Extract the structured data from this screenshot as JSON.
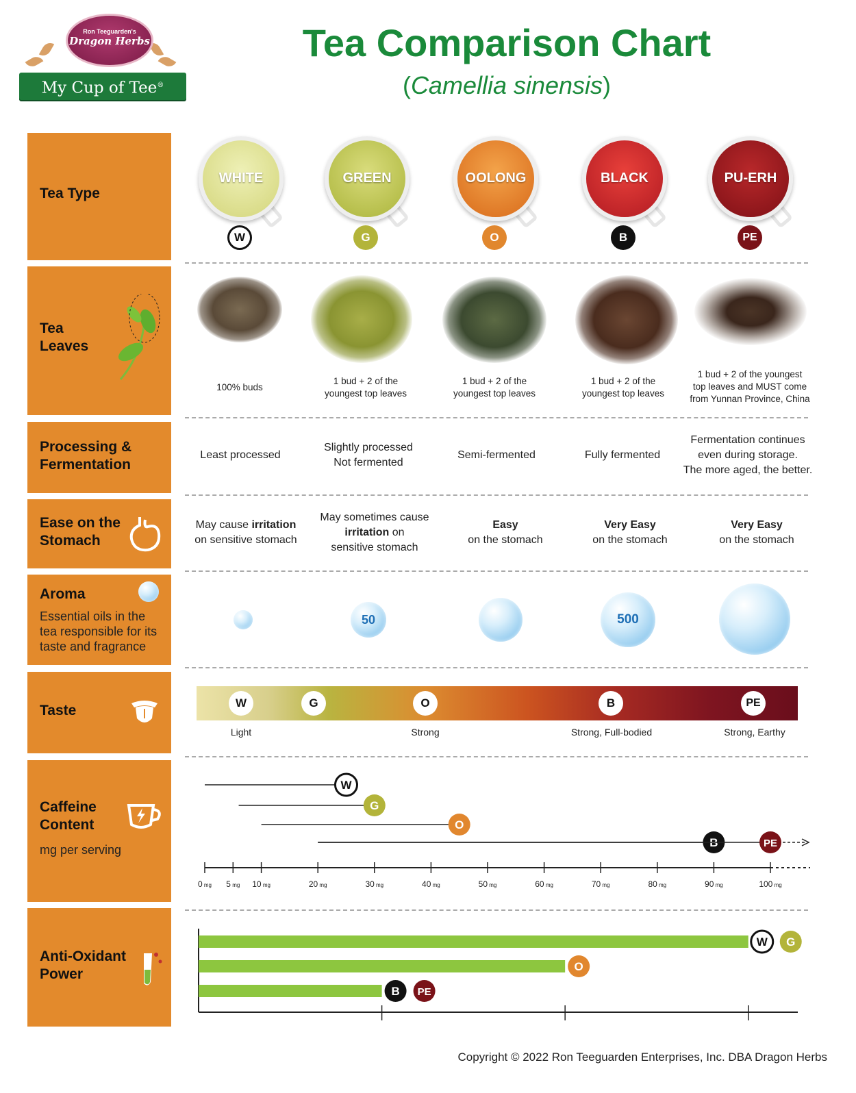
{
  "header": {
    "logo_top": "Ron Teeguarden's",
    "logo_brand": "Dragon Herbs",
    "logo_ribbon": "My Cup of Tee",
    "title": "Tea Comparison Chart",
    "subtitle": "Camellia sinensis"
  },
  "rows": {
    "tea_type": "Tea Type",
    "tea_leaves_1": "Tea",
    "tea_leaves_2": "Leaves",
    "processing_1": "Processing &",
    "processing_2": "Fermentation",
    "stomach_1": "Ease on the",
    "stomach_2": "Stomach",
    "aroma": "Aroma",
    "aroma_desc_1": "Essential oils in the",
    "aroma_desc_2": "tea responsible for its",
    "aroma_desc_3": "taste and fragrance",
    "taste": "Taste",
    "caffeine_1": "Caffeine",
    "caffeine_2": "Content",
    "caffeine_unit": "mg per serving",
    "antioxidant_1": "Anti-Oxidant",
    "antioxidant_2": "Power"
  },
  "teas": [
    {
      "name": "WHITE",
      "code": "W",
      "color": "#ffffff",
      "cup": "#d6dc8a",
      "leaves": "100% buds",
      "processing": "Least processed",
      "stomach_a": "May cause ",
      "stomach_b": "irritation",
      "stomach_c": "on sensitive stomach"
    },
    {
      "name": "GREEN",
      "code": "G",
      "color": "#b3b43a",
      "cup": "#b9c04a",
      "leaves_1": "1 bud + 2 of the",
      "leaves_2": "youngest top leaves",
      "processing_1": "Slightly processed",
      "processing_2": "Not fermented",
      "stomach_a": "May sometimes cause",
      "stomach_b": "irritation",
      "stomach_b2": " on",
      "stomach_c": "sensitive stomach"
    },
    {
      "name": "OOLONG",
      "code": "O",
      "color": "#e1872e",
      "cup": "#e58a2a",
      "leaves_1": "1 bud + 2 of the",
      "leaves_2": "youngest top leaves",
      "processing": "Semi-fermented",
      "stomach_b": "Easy",
      "stomach_c": "on the stomach"
    },
    {
      "name": "BLACK",
      "code": "B",
      "color": "#111111",
      "cup": "#c8202a",
      "leaves_1": "1 bud + 2 of the",
      "leaves_2": "youngest top leaves",
      "processing": "Fully fermented",
      "stomach_b": "Very Easy",
      "stomach_c": "on the stomach"
    },
    {
      "name": "PU-ERH",
      "code": "PE",
      "color": "#7a1218",
      "cup": "#9a1a1c",
      "leaves_1": "1 bud + 2 of the youngest",
      "leaves_2": "top leaves and MUST come",
      "leaves_3": "from Yunnan Province, China",
      "processing_1": "Fermentation continues",
      "processing_2": "even during storage.",
      "processing_3": "The more aged, the better.",
      "stomach_b": "Very Easy",
      "stomach_c": "on the stomach"
    }
  ],
  "aroma_labels": {
    "green": "50",
    "black": "500"
  },
  "taste_labels": {
    "light": "Light",
    "strong": "Strong",
    "full": "Strong, Full-bodied",
    "earthy": "Strong, Earthy"
  },
  "chart_data": [
    {
      "type": "range",
      "name": "Caffeine Content",
      "unit": "mg",
      "ticks": [
        0,
        5,
        10,
        20,
        30,
        40,
        50,
        60,
        70,
        80,
        90,
        100
      ],
      "tick_labels": [
        "0",
        "5",
        "10",
        "20",
        "30",
        "40",
        "50",
        "60",
        "70",
        "80",
        "90",
        "100"
      ],
      "tick_unit": "mg",
      "xlim": [
        0,
        105
      ],
      "series": [
        {
          "code": "W",
          "min": 0,
          "max": 25
        },
        {
          "code": "G",
          "min": 6,
          "max": 30
        },
        {
          "code": "O",
          "min": 10,
          "max": 45
        },
        {
          "code": "B",
          "min": 20,
          "max": 90
        },
        {
          "code": "PE",
          "min": 20,
          "max": 100,
          "open_ended": true
        }
      ]
    },
    {
      "type": "bar",
      "name": "Anti-Oxidant Power",
      "orientation": "horizontal",
      "categories": [
        "W,G",
        "O",
        "B,PE"
      ],
      "values": [
        3,
        2,
        1
      ],
      "xlim": [
        0,
        3.27
      ],
      "bar_color": "#8dc63f"
    }
  ],
  "copyright": "Copyright © 2022 Ron Teeguarden Enterprises, Inc. DBA Dragon Herbs"
}
